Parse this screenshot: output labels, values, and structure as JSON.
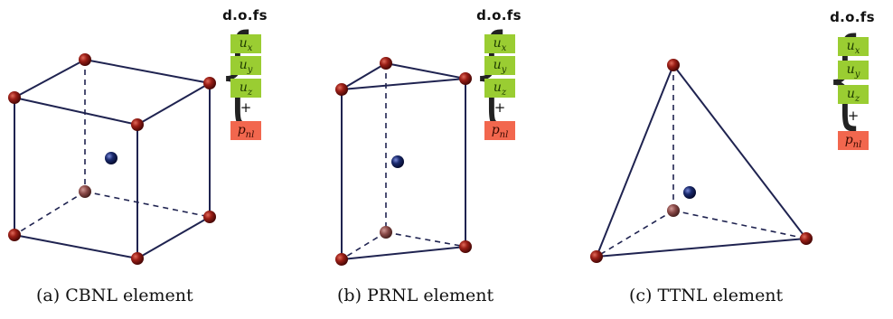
{
  "panels": [
    {
      "caption": "(a) CBNL element",
      "dofs_title": "d.o.fs",
      "dofs": [
        "u_x",
        "u_y",
        "u_z"
      ],
      "plus": "+",
      "nonlocal_dof": "p_nl"
    },
    {
      "caption": "(b) PRNL element",
      "dofs_title": "d.o.fs",
      "dofs": [
        "u_x",
        "u_y",
        "u_z"
      ],
      "plus": "+",
      "nonlocal_dof": "p_nl"
    },
    {
      "caption": "(c) TTNL element",
      "dofs_title": "d.o.fs",
      "dofs": [
        "u_x",
        "u_y",
        "u_z"
      ],
      "plus": "+",
      "nonlocal_dof": "p_nl"
    }
  ],
  "colors": {
    "edge": "#1f2350",
    "node": "#8b1a14",
    "hidden_node": "#8a4a48",
    "center_node": "#1a2a6e",
    "dof_green": "#9acd32",
    "dof_red": "#f2674e"
  }
}
